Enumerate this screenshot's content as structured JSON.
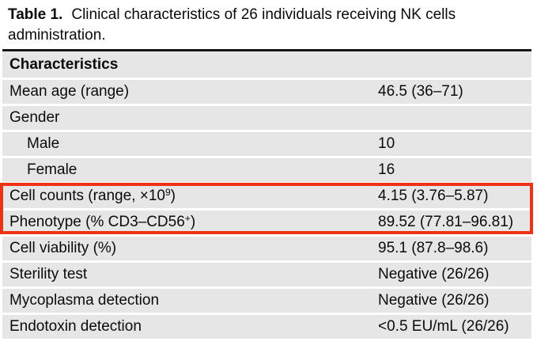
{
  "caption": {
    "label": "Table 1.",
    "line1": "Clinical characteristics of 26 individuals receiving NK cells",
    "line2": "administration."
  },
  "table": {
    "header": "Characteristics",
    "rows": [
      {
        "label": "Mean age (range)",
        "value": "46.5 (36–71)"
      },
      {
        "label": "Gender",
        "value": ""
      },
      {
        "label": "Male",
        "value": "10",
        "indent": true
      },
      {
        "label": "Female",
        "value": "16",
        "indent": true
      },
      {
        "label_pre": "Cell counts (range, ×10",
        "sup": "9",
        "label_post": ")",
        "value": "4.15 (3.76–5.87)",
        "highlighted": true
      },
      {
        "label_pre": "Phenotype (% CD3–CD56",
        "sup": "+",
        "label_post": ")",
        "value": "89.52 (77.81–96.81)",
        "highlighted": true
      },
      {
        "label": "Cell viability (%)",
        "value": "95.1 (87.8–98.6)"
      },
      {
        "label": "Sterility test",
        "value": "Negative (26/26)"
      },
      {
        "label": "Mycoplasma detection",
        "value": "Negative (26/26)"
      },
      {
        "label": "Endotoxin detection",
        "value": "<0.5 EU/mL (26/26)"
      }
    ]
  },
  "annotation": {
    "type": "highlight-rectangle",
    "color": "#ee3216",
    "rows_covered": [
      "Cell counts (range, ×10⁹)",
      "Phenotype (% CD3–CD56⁺)"
    ]
  },
  "colors": {
    "row_background": "#e6e6e6",
    "table_top_border": "#161616",
    "highlight_border": "#ee3216",
    "page_background": "#ffffff"
  }
}
